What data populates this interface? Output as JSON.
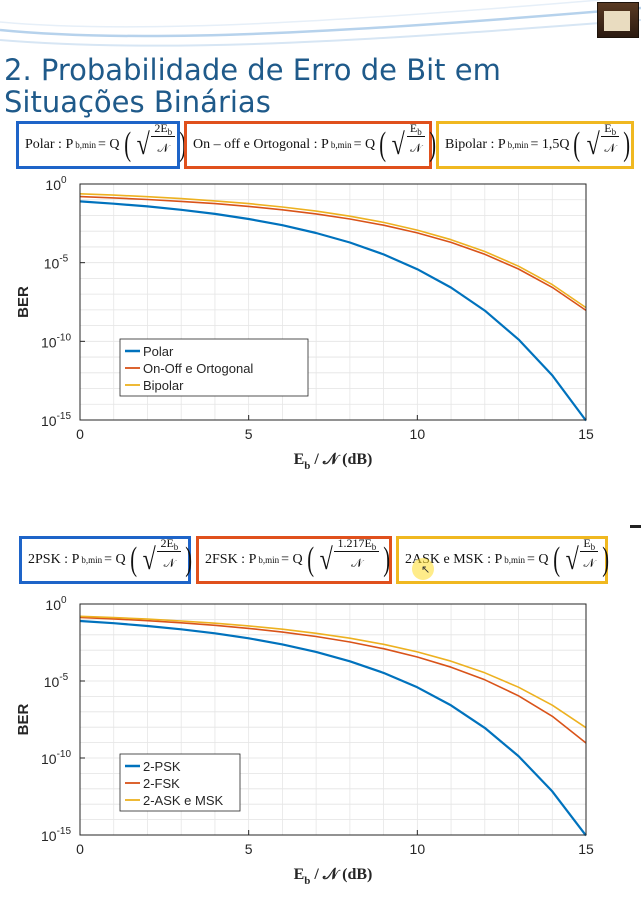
{
  "colors": {
    "title": "#1f5a8a",
    "blue": "#0072bd",
    "orange": "#d95319",
    "yellow": "#edb120",
    "box_blue": "#1e64c8",
    "box_orange": "#e0501c",
    "box_yellow": "#f0b820"
  },
  "icons": {
    "slide_decoration": "swoosh-decoration",
    "book": "book-icon",
    "cursor": "cursor-icon"
  },
  "title": "2. Probabilidade de Erro de Bit em Situações Binárias",
  "formulas_top": [
    {
      "label": "Polar : P",
      "sub": "b,min",
      "eq": " = Q",
      "num": "2E_b",
      "den": "𝒩",
      "coef": ""
    },
    {
      "label": "On – off e Ortogonal : P",
      "sub": "b,min",
      "eq": " = Q",
      "num": "E_b",
      "den": "𝒩",
      "coef": ""
    },
    {
      "label": "Bipolar : P",
      "sub": "b,min",
      "eq": " = 1,5Q",
      "num": "E_b",
      "den": "𝒩",
      "coef": ""
    }
  ],
  "formulas_bottom": [
    {
      "label": "2PSK : P",
      "sub": "b,min",
      "eq": " = Q",
      "num": "2E_b",
      "den": "𝒩"
    },
    {
      "label": "2FSK : P",
      "sub": "b,min",
      "eq": " = Q",
      "num": "1.217E_b",
      "den": "𝒩"
    },
    {
      "label": "2ASK e MSK : P",
      "sub": "b,min",
      "eq": " = Q",
      "num": "E_b",
      "den": "𝒩"
    }
  ],
  "chart_data": [
    {
      "type": "line",
      "xlabel": "E_b / 𝒩 (dB)",
      "ylabel": "BER",
      "xlim": [
        0,
        15
      ],
      "ylim": [
        1e-15,
        1
      ],
      "yscale": "log",
      "xticks": [
        "0",
        "5",
        "10",
        "15"
      ],
      "yticks": [
        {
          "base": "10",
          "exp": "0"
        },
        {
          "base": "10",
          "exp": "-5"
        },
        {
          "base": "10",
          "exp": "-10"
        },
        {
          "base": "10",
          "exp": "-15"
        }
      ],
      "grid": true,
      "legend_position": "lower-left",
      "x": [
        0,
        1,
        2,
        3,
        4,
        5,
        6,
        7,
        8,
        9,
        10,
        11,
        12,
        13,
        14,
        15
      ],
      "series": [
        {
          "name": "Polar",
          "color": "#0072bd",
          "values": [
            0.0786,
            0.0563,
            0.0375,
            0.0229,
            0.0125,
            0.00595,
            0.00239,
            0.00077,
            0.000191,
            3.36e-05,
            3.87e-06,
            2.61e-07,
            9.01e-09,
            1.33e-10,
            6.81e-13,
            9.12e-16
          ]
        },
        {
          "name": "On-Off e Ortogonal",
          "color": "#d95319",
          "values": [
            0.1587,
            0.1309,
            0.104,
            0.0789,
            0.0565,
            0.0377,
            0.023,
            0.0126,
            0.006,
            0.0024,
            0.00078,
            0.000193,
            3.42e-05,
            3.95e-06,
            2.68e-07,
            9.3e-09
          ]
        },
        {
          "name": "Bipolar",
          "color": "#edb120",
          "values": [
            0.238,
            0.196,
            0.156,
            0.118,
            0.0848,
            0.0566,
            0.0345,
            0.0189,
            0.009,
            0.0036,
            0.00117,
            0.00029,
            5.13e-05,
            5.93e-06,
            4.02e-07,
            1.4e-08
          ]
        }
      ]
    },
    {
      "type": "line",
      "xlabel": "E_b / 𝒩 (dB)",
      "ylabel": "BER",
      "xlim": [
        0,
        15
      ],
      "ylim": [
        1e-15,
        1
      ],
      "yscale": "log",
      "xticks": [
        "0",
        "5",
        "10",
        "15"
      ],
      "yticks": [
        {
          "base": "10",
          "exp": "0"
        },
        {
          "base": "10",
          "exp": "-5"
        },
        {
          "base": "10",
          "exp": "-10"
        },
        {
          "base": "10",
          "exp": "-15"
        }
      ],
      "grid": true,
      "legend_position": "lower-left",
      "x": [
        0,
        1,
        2,
        3,
        4,
        5,
        6,
        7,
        8,
        9,
        10,
        11,
        12,
        13,
        14,
        15
      ],
      "series": [
        {
          "name": "2-PSK",
          "color": "#0072bd",
          "values": [
            0.0786,
            0.0563,
            0.0375,
            0.0229,
            0.0125,
            0.00595,
            0.00239,
            0.00077,
            0.000191,
            3.36e-05,
            3.87e-06,
            2.61e-07,
            9.01e-09,
            1.33e-10,
            6.81e-13,
            9.12e-16
          ]
        },
        {
          "name": "2-FSK",
          "color": "#d95319",
          "values": [
            0.1335,
            0.1072,
            0.0824,
            0.0601,
            0.0411,
            0.0261,
            0.015,
            0.0077,
            0.0034,
            0.00125,
            0.00036,
            7.9e-05,
            1.2e-05,
            1.1e-06,
            5.1e-08,
            9.4e-10
          ]
        },
        {
          "name": "2-ASK e MSK",
          "color": "#edb120",
          "values": [
            0.1587,
            0.1309,
            0.104,
            0.0789,
            0.0565,
            0.0377,
            0.023,
            0.0126,
            0.006,
            0.0024,
            0.00078,
            0.000193,
            3.42e-05,
            3.95e-06,
            2.68e-07,
            9.3e-09
          ]
        }
      ]
    }
  ]
}
